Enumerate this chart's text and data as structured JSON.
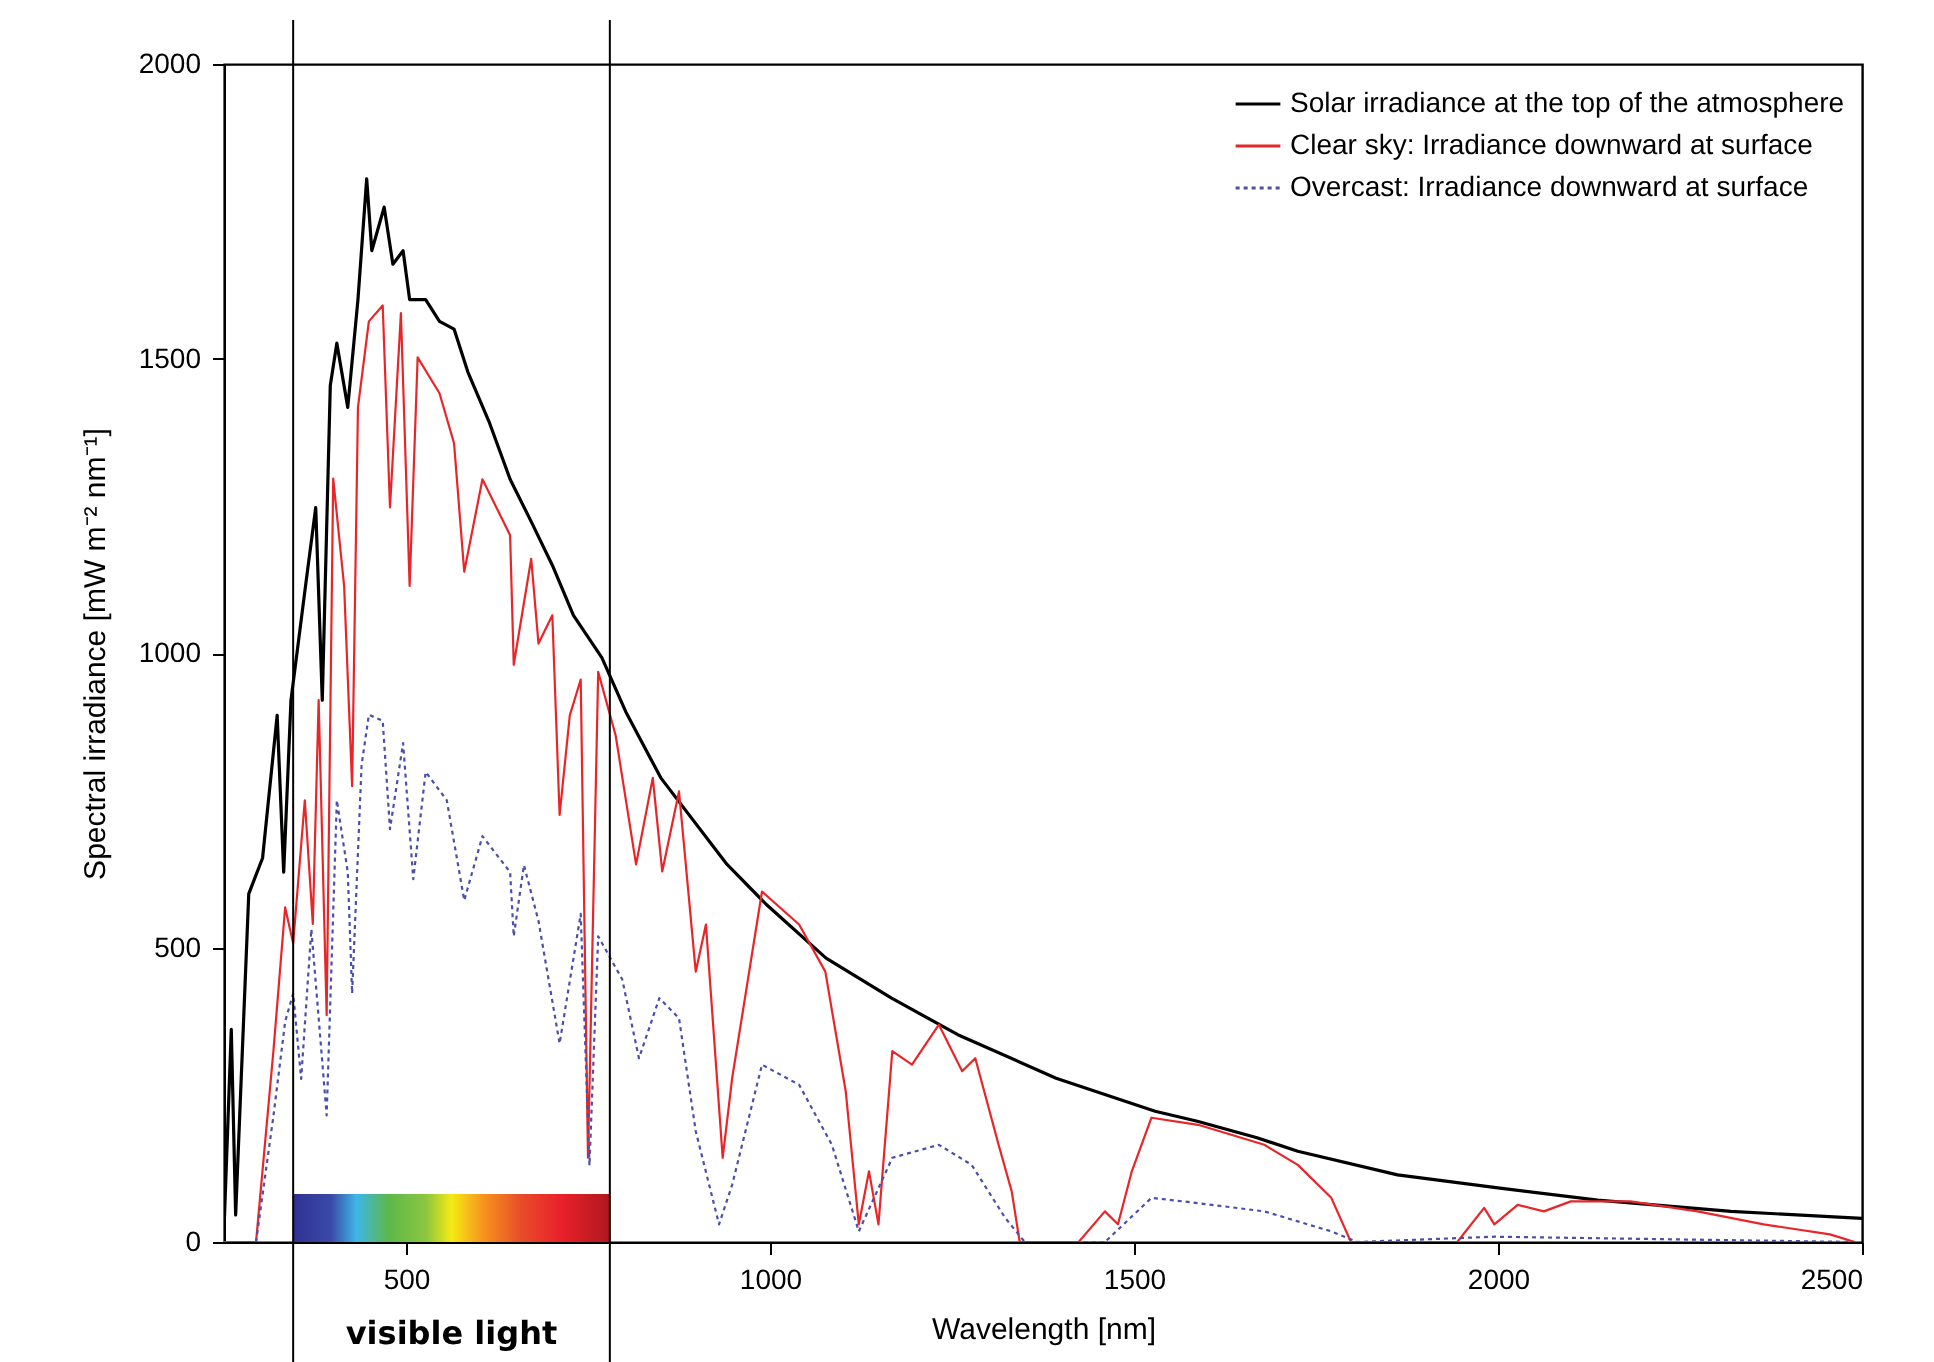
{
  "chart_data": {
    "type": "line",
    "xlabel": "Wavelength [nm]",
    "ylabel": "Spectral irradiance [mW m⁻² nm⁻¹]",
    "xlim": [
      250,
      2500
    ],
    "xticks": [
      500,
      1000,
      1500,
      2000,
      2500
    ],
    "ylim": [
      0,
      2000
    ],
    "yticks": [
      0,
      500,
      1000,
      1500,
      2000
    ],
    "grid": false,
    "legend": "top right",
    "series": [
      {
        "name": "Solar irradiance at the top of the atmosphere",
        "color": "#000000",
        "line_style": "solid",
        "x": [
          250,
          260,
          266,
          284,
          303,
          323,
          332,
          342,
          362,
          376,
          385,
          396,
          405,
          420,
          434,
          446,
          453,
          470,
          482,
          496,
          505,
          527,
          546,
          566,
          585,
          614,
          643,
          672,
          701,
          730,
          769,
          802,
          850,
          941,
          995,
          1077,
          1167,
          1258,
          1393,
          1529,
          1587,
          1669,
          1725,
          1862,
          2000,
          2137,
          2320,
          2500
        ],
        "values": [
          21,
          361,
          46,
          591,
          652,
          894,
          628,
          920,
          1114,
          1247,
          920,
          1454,
          1526,
          1417,
          1600,
          1805,
          1683,
          1757,
          1660,
          1683,
          1600,
          1600,
          1563,
          1550,
          1477,
          1393,
          1295,
          1223,
          1149,
          1064,
          992,
          900,
          788,
          641,
          573,
          482,
          414,
          352,
          278,
          222,
          205,
          177,
          154,
          114,
          92,
          71,
          52,
          40
        ]
      },
      {
        "name": "Clear sky: Irradiance downward at surface",
        "color": "#e8262a",
        "line_style": "solid",
        "x": [
          250,
          294,
          318,
          334,
          345,
          361,
          372,
          380,
          391,
          400,
          415,
          426,
          434,
          449,
          468,
          478,
          493,
          505,
          516,
          546,
          566,
          580,
          605,
          643,
          648,
          672,
          682,
          701,
          711,
          725,
          740,
          750,
          764,
          788,
          816,
          839,
          852,
          875,
          898,
          912,
          935,
          948,
          989,
          1040,
          1076,
          1104,
          1122,
          1136,
          1149,
          1168,
          1195,
          1232,
          1264,
          1282,
          1314,
          1332,
          1343,
          1424,
          1460,
          1478,
          1497,
          1524,
          1588,
          1679,
          1725,
          1771,
          1798,
          1944,
          1981,
          1995,
          2027,
          2063,
          2100,
          2182,
          2274,
          2365,
          2456,
          2490
        ],
        "values": [
          0,
          0,
          326,
          568,
          507,
          750,
          540,
          920,
          385,
          1296,
          1114,
          774,
          1417,
          1563,
          1590,
          1247,
          1577,
          1114,
          1502,
          1441,
          1356,
          1138,
          1295,
          1200,
          980,
          1160,
          1016,
          1064,
          725,
          894,
          955,
          143,
          968,
          860,
          641,
          788,
          629,
          765,
          459,
          539,
          143,
          278,
          595,
          539,
          459,
          256,
          30,
          120,
          30,
          324,
          301,
          369,
          290,
          312,
          165,
          86,
          0,
          0,
          52,
          30,
          120,
          211,
          199,
          165,
          131,
          75,
          0,
          0,
          58,
          30,
          63,
          52,
          69,
          69,
          52,
          30,
          13,
          0
        ]
      },
      {
        "name": "Overcast: Irradiance downward at surface",
        "color": "#4a4fa8",
        "line_style": "dotted",
        "x": [
          250,
          294,
          318,
          334,
          345,
          356,
          370,
          391,
          405,
          420,
          426,
          439,
          449,
          468,
          478,
          496,
          510,
          527,
          556,
          580,
          605,
          643,
          648,
          662,
          682,
          711,
          740,
          752,
          764,
          797,
          820,
          848,
          875,
          898,
          930,
          948,
          989,
          1040,
          1085,
          1122,
          1168,
          1232,
          1277,
          1323,
          1350,
          1460,
          1524,
          1588,
          1679,
          1771,
          1807,
          1995,
          2490
        ],
        "values": [
          0,
          0,
          215,
          374,
          422,
          277,
          531,
          215,
          750,
          628,
          422,
          810,
          895,
          885,
          701,
          847,
          616,
          798,
          750,
          580,
          689,
          628,
          519,
          640,
          545,
          337,
          557,
          130,
          519,
          446,
          312,
          414,
          380,
          188,
          30,
          97,
          301,
          267,
          165,
          18,
          143,
          165,
          131,
          41,
          0,
          0,
          75,
          66,
          52,
          18,
          0,
          9,
          0
        ]
      }
    ],
    "ref_lines": [
      {
        "axis": "x",
        "value": 345
      },
      {
        "axis": "x",
        "value": 780
      }
    ],
    "bands": [
      {
        "axis": "x",
        "from": 345,
        "to": 780,
        "label": "visible light"
      }
    ]
  }
}
